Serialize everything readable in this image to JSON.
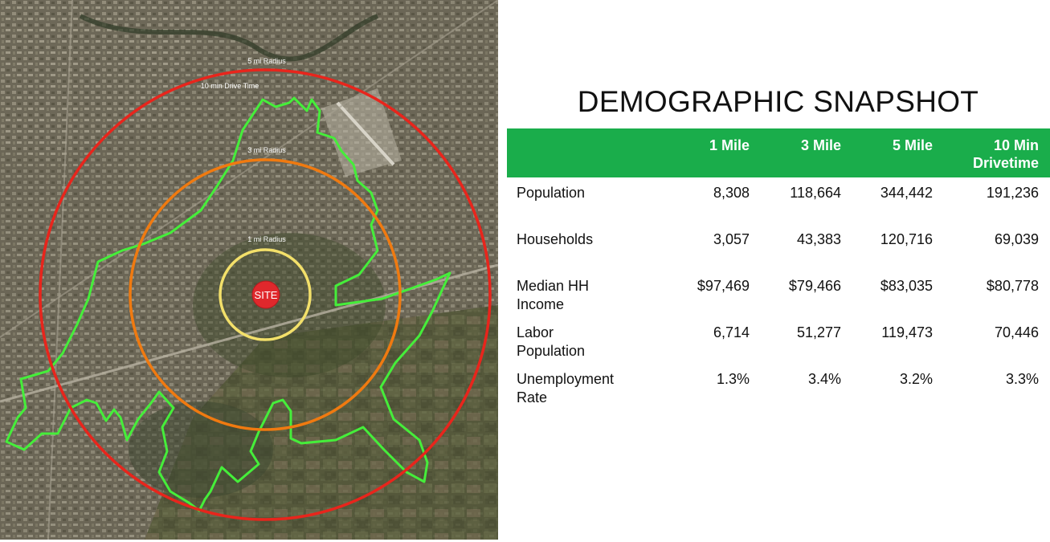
{
  "map": {
    "labels": {
      "r5": "5 mi Radius",
      "drive": "10 min Drive Time",
      "r3": "3 mi Radius",
      "r1": "1 mi Radius",
      "site": "SITE"
    },
    "colors": {
      "ring_5mi": "#e8251c",
      "ring_3mi": "#f07a10",
      "ring_1mi": "#f3e06a",
      "drivetime": "#3ee83a",
      "site": "#e0282c"
    }
  },
  "title": "DEMOGRAPHIC SNAPSHOT",
  "table": {
    "header_color": "#1aad4b",
    "headers": [
      "",
      "1 Mile",
      "3 Mile",
      "5 Mile",
      "10 Min Drivetime"
    ],
    "rows": [
      {
        "label": "Population",
        "values": [
          "8,308",
          "118,664",
          "344,442",
          "191,236"
        ]
      },
      {
        "label": "Households",
        "values": [
          "3,057",
          "43,383",
          "120,716",
          "69,039"
        ]
      },
      {
        "label": "Median HH Income",
        "values": [
          "$97,469",
          "$79,466",
          "$83,035",
          "$80,778"
        ]
      },
      {
        "label": "Labor Population",
        "values": [
          "6,714",
          "51,277",
          "119,473",
          "70,446"
        ]
      },
      {
        "label": "Unemployment Rate",
        "values": [
          "1.3%",
          "3.4%",
          "3.2%",
          "3.3%"
        ]
      }
    ]
  }
}
